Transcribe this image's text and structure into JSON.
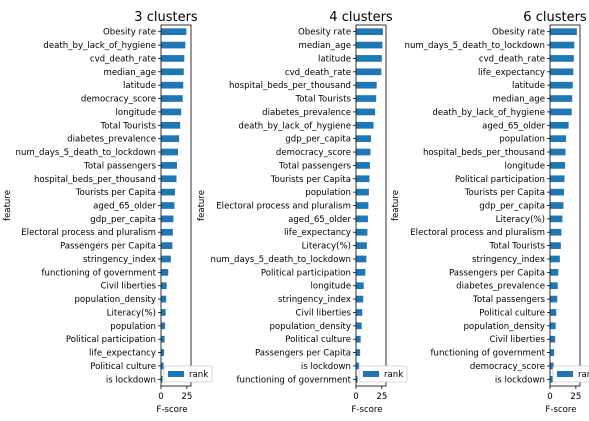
{
  "chart_data": [
    {
      "type": "bar",
      "orientation": "horizontal",
      "title": "3 clusters",
      "xlabel": "F-score",
      "ylabel": "feature",
      "xlim": [
        0,
        29
      ],
      "xticks": [
        0,
        25
      ],
      "legend": {
        "label": "rank",
        "position": "lower-right"
      },
      "color": "#1f77b4",
      "categories": [
        "Obesity rate",
        "death_by_lack_of_hygiene",
        "cvd_death_rate",
        "median_age",
        "latitude",
        "democracy_score",
        "longitude",
        "Total Tourists",
        "diabetes_prevalence",
        "num_days_5_death_to_lockdown",
        "Total passengers",
        "hospital_beds_per_thousand",
        "Tourists per Capita",
        "aged_65_older",
        "gdp_per_capita",
        "Electoral process and pluralism",
        "Passengers per Capita",
        "stringency_index",
        "functioning of government",
        "Civil liberties",
        "population_density",
        "Literacy(%)",
        "population",
        "Political participation",
        "life_expectancy",
        "Political culture",
        "is lockdown"
      ],
      "values": [
        24.5,
        23.5,
        22.5,
        22.0,
        21.5,
        21.0,
        19.5,
        18.5,
        17.5,
        16.5,
        15.5,
        15.0,
        13.5,
        13.0,
        12.0,
        11.5,
        11.0,
        9.5,
        7.0,
        5.5,
        5.0,
        4.5,
        4.0,
        3.5,
        3.0,
        2.5,
        1.5
      ]
    },
    {
      "type": "bar",
      "orientation": "horizontal",
      "title": "4 clusters",
      "xlabel": "F-score",
      "ylabel": "feature",
      "xlim": [
        0,
        29
      ],
      "xticks": [
        0,
        25
      ],
      "legend": {
        "label": "rank",
        "position": "lower-right"
      },
      "color": "#1f77b4",
      "categories": [
        "Obesity rate",
        "median_age",
        "latitude",
        "cvd_death_rate",
        "hospital_beds_per_thousand",
        "Total Tourists",
        "diabetes_prevalence",
        "death_by_lack_of_hygiene",
        "gdp_per_capita",
        "democracy_score",
        "Total passengers",
        "Tourists per Capita",
        "population",
        "Electoral process and pluralism",
        "aged_65_older",
        "life_expectancy",
        "Literacy(%)",
        "num_days_5_death_to_lockdown",
        "Political participation",
        "longitude",
        "stringency_index",
        "Civil liberties",
        "population_density",
        "Political culture",
        "Passengers per Capita",
        "is lockdown",
        "functioning of government"
      ],
      "values": [
        26.0,
        25.5,
        25.0,
        24.5,
        20.0,
        19.5,
        18.5,
        17.0,
        14.5,
        14.0,
        13.5,
        13.0,
        12.5,
        12.0,
        11.5,
        11.0,
        10.5,
        10.0,
        9.0,
        7.5,
        7.0,
        6.0,
        5.5,
        4.5,
        4.0,
        3.0,
        1.5
      ]
    },
    {
      "type": "bar",
      "orientation": "horizontal",
      "title": "6 clusters",
      "xlabel": "F-score",
      "ylabel": "feature",
      "xlim": [
        0,
        29
      ],
      "xticks": [
        0,
        25
      ],
      "legend": {
        "label": "rank",
        "position": "lower-right"
      },
      "color": "#1f77b4",
      "categories": [
        "Obesity rate",
        "num_days_5_death_to_lockdown",
        "cvd_death_rate",
        "life_expectancy",
        "latitude",
        "median_age",
        "death_by_lack_of_hygiene",
        "aged_65_older",
        "population",
        "hospital_beds_per_thousand",
        "longitude",
        "Political participation",
        "Tourists per Capita",
        "gdp_per_capita",
        "Literacy(%)",
        "Electoral process and pluralism",
        "Total Tourists",
        "stringency_index",
        "Passengers per Capita",
        "diabetes_prevalence",
        "Total passengers",
        "Political culture",
        "population_density",
        "Civil liberties",
        "functioning of government",
        "democracy_score",
        "is lockdown"
      ],
      "values": [
        26.0,
        23.5,
        23.0,
        22.5,
        22.0,
        21.5,
        21.0,
        18.0,
        15.5,
        15.0,
        14.5,
        14.0,
        13.5,
        13.0,
        12.0,
        11.0,
        10.5,
        9.5,
        8.0,
        7.5,
        7.0,
        6.0,
        5.5,
        5.0,
        4.0,
        3.5,
        2.5
      ]
    }
  ]
}
